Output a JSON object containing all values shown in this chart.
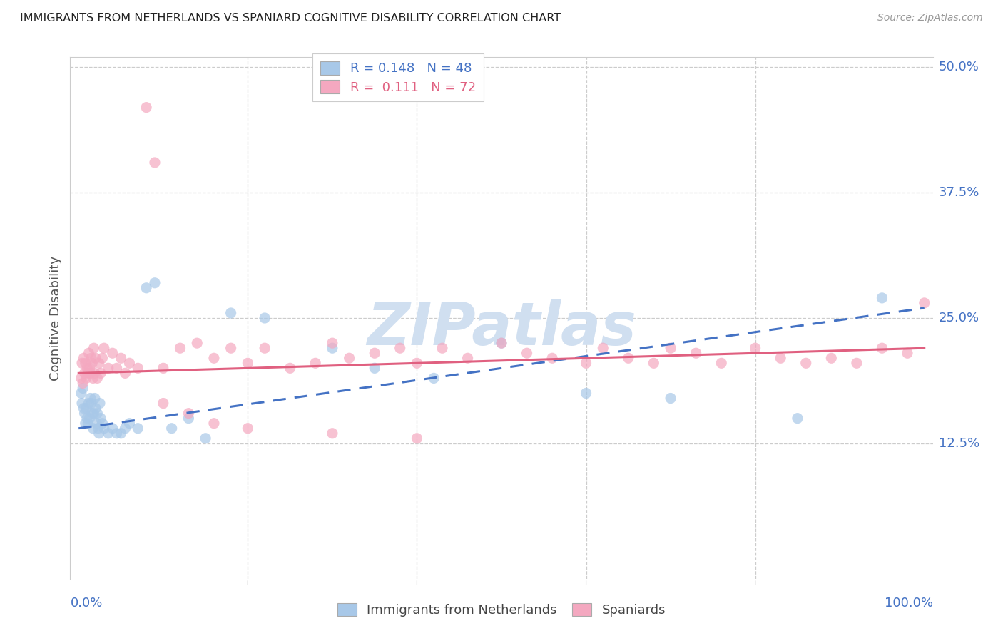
{
  "title": "IMMIGRANTS FROM NETHERLANDS VS SPANIARD COGNITIVE DISABILITY CORRELATION CHART",
  "source": "Source: ZipAtlas.com",
  "ylabel": "Cognitive Disability",
  "legend_text1": "R = 0.148   N = 48",
  "legend_text2": "R =  0.111   N = 72",
  "color_netherlands": "#a8c8e8",
  "color_spaniards": "#f4a8c0",
  "color_netherlands_line": "#4472c4",
  "color_spaniards_line": "#e06080",
  "watermark": "ZIPatlas",
  "background_color": "#ffffff",
  "grid_color": "#cccccc",
  "title_color": "#222222",
  "axis_label_color": "#4472c4",
  "watermark_color": "#d0dff0",
  "nl_line_start_y": 14.0,
  "nl_line_end_y": 26.0,
  "sp_line_start_y": 19.5,
  "sp_line_end_y": 22.0,
  "xmin": 0.0,
  "xmax": 100.0,
  "ymin": 0.0,
  "ymax": 50.0,
  "yticks": [
    0.0,
    12.5,
    25.0,
    37.5,
    50.0
  ],
  "ytick_labels": [
    "",
    "12.5%",
    "25.0%",
    "37.5%",
    "50.0%"
  ],
  "xtick_labels": [
    "0.0%",
    "100.0%"
  ],
  "nl_x": [
    0.3,
    0.4,
    0.5,
    0.6,
    0.7,
    0.8,
    0.9,
    1.0,
    1.1,
    1.2,
    1.3,
    1.4,
    1.5,
    1.6,
    1.7,
    1.8,
    1.9,
    2.0,
    2.1,
    2.2,
    2.3,
    2.4,
    2.5,
    2.6,
    2.8,
    3.0,
    3.5,
    4.0,
    4.5,
    5.0,
    5.5,
    6.0,
    7.0,
    8.0,
    9.0,
    11.0,
    13.0,
    15.0,
    18.0,
    22.0,
    30.0,
    35.0,
    42.0,
    50.0,
    60.0,
    70.0,
    85.0,
    95.0
  ],
  "nl_y": [
    17.5,
    16.5,
    18.0,
    16.0,
    15.5,
    14.5,
    16.0,
    15.0,
    14.5,
    16.5,
    15.0,
    17.0,
    16.5,
    15.5,
    14.0,
    15.5,
    17.0,
    16.0,
    14.5,
    15.5,
    14.0,
    13.5,
    16.5,
    15.0,
    14.5,
    14.0,
    13.5,
    14.0,
    13.5,
    13.5,
    14.0,
    14.5,
    14.0,
    28.0,
    28.5,
    14.0,
    15.0,
    13.0,
    25.5,
    25.0,
    22.0,
    20.0,
    19.0,
    22.5,
    17.5,
    17.0,
    15.0,
    27.0
  ],
  "sp_x": [
    0.3,
    0.4,
    0.5,
    0.6,
    0.7,
    0.8,
    0.9,
    1.0,
    1.1,
    1.2,
    1.3,
    1.4,
    1.5,
    1.6,
    1.7,
    1.8,
    1.9,
    2.0,
    2.2,
    2.4,
    2.6,
    2.8,
    3.0,
    3.5,
    4.0,
    4.5,
    5.0,
    5.5,
    6.0,
    7.0,
    8.0,
    9.0,
    10.0,
    12.0,
    14.0,
    16.0,
    18.0,
    20.0,
    22.0,
    25.0,
    28.0,
    30.0,
    32.0,
    35.0,
    38.0,
    40.0,
    43.0,
    46.0,
    50.0,
    53.0,
    56.0,
    60.0,
    62.0,
    65.0,
    68.0,
    70.0,
    73.0,
    76.0,
    80.0,
    83.0,
    86.0,
    89.0,
    92.0,
    95.0,
    98.0,
    100.0,
    10.0,
    13.0,
    16.0,
    20.0,
    30.0,
    40.0
  ],
  "sp_y": [
    19.0,
    20.5,
    18.5,
    21.0,
    19.5,
    20.5,
    19.0,
    20.0,
    19.5,
    21.5,
    20.0,
    19.5,
    21.0,
    20.5,
    19.0,
    22.0,
    19.5,
    21.0,
    19.0,
    20.5,
    19.5,
    21.0,
    22.0,
    20.0,
    21.5,
    20.0,
    21.0,
    19.5,
    20.5,
    20.0,
    46.0,
    40.5,
    20.0,
    22.0,
    22.5,
    21.0,
    22.0,
    20.5,
    22.0,
    20.0,
    20.5,
    22.5,
    21.0,
    21.5,
    22.0,
    20.5,
    22.0,
    21.0,
    22.5,
    21.5,
    21.0,
    20.5,
    22.0,
    21.0,
    20.5,
    22.0,
    21.5,
    20.5,
    22.0,
    21.0,
    20.5,
    21.0,
    20.5,
    22.0,
    21.5,
    26.5,
    16.5,
    15.5,
    14.5,
    14.0,
    13.5,
    13.0
  ]
}
